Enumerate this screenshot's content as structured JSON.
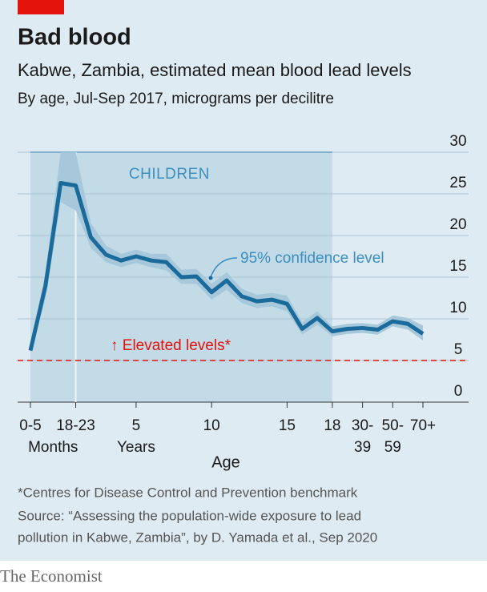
{
  "chart_data": {
    "type": "line",
    "title": "Bad blood",
    "subtitle": "Kabwe, Zambia, estimated mean blood lead levels",
    "subtitle2": "By age, Jul-Sep 2017, micrograms per decilitre",
    "x_label": "Age",
    "x": [
      0,
      1,
      2,
      3,
      4,
      5,
      6,
      7,
      8,
      9,
      10,
      11,
      12,
      13,
      14,
      15,
      16,
      17,
      18,
      19,
      20,
      21,
      22,
      23,
      24,
      25,
      26
    ],
    "xlim": [
      0,
      26
    ],
    "xticks": [
      {
        "value": 0,
        "label": "0-5"
      },
      {
        "value": 3,
        "label": "18-23"
      },
      {
        "value": 7,
        "label": "5"
      },
      {
        "value": 12,
        "label": "10"
      },
      {
        "value": 17,
        "label": "15"
      },
      {
        "value": 20,
        "label": "18"
      },
      {
        "value": 22,
        "label": "30-"
      },
      {
        "value": 24,
        "label": "50-"
      },
      {
        "value": 26,
        "label": "70+"
      }
    ],
    "x_sublabels": [
      {
        "value": 1.5,
        "label": "Months"
      },
      {
        "value": 7,
        "label": "Years"
      },
      {
        "value": 22,
        "label": "39"
      },
      {
        "value": 24,
        "label": "59"
      }
    ],
    "ylim": [
      0,
      30
    ],
    "yticks": [
      0,
      5,
      10,
      15,
      20,
      25,
      30
    ],
    "grid": true,
    "series": [
      {
        "color": "#1a6a9b",
        "band_color": "#a6c8da",
        "values": [
          6.2,
          14,
          26.3,
          26,
          19.8,
          17.7,
          17,
          17.5,
          17,
          16.8,
          15,
          15.1,
          13.2,
          14.6,
          12.7,
          12.1,
          12.3,
          11.8,
          8.8,
          10.1,
          8.5,
          8.8,
          8.9,
          8.7,
          9.7,
          9.4,
          8.2
        ],
        "lower": [
          5.8,
          12.5,
          24,
          23,
          18.5,
          16.8,
          16.2,
          16.7,
          16.2,
          15.8,
          14.2,
          14.2,
          12.3,
          13.5,
          11.9,
          11.3,
          11.5,
          10.9,
          8.1,
          9.3,
          7.9,
          8.2,
          8.3,
          8.1,
          9.1,
          8.7,
          7.4
        ],
        "upper": [
          6.8,
          15.5,
          30,
          30,
          21.5,
          18.8,
          17.8,
          18.3,
          17.8,
          17.8,
          15.9,
          16,
          14.2,
          15.6,
          13.6,
          12.9,
          13.1,
          12.8,
          9.6,
          10.9,
          9.1,
          9.4,
          9.5,
          9.3,
          10.4,
          10.1,
          9.2
        ]
      }
    ],
    "band_label": "95% confidence level",
    "shaded_region": {
      "from": 0,
      "to": 20,
      "label": "CHILDREN",
      "color": "#c3dbe7"
    },
    "divider": 3,
    "reference_line": {
      "value": 5,
      "label": "↑ Elevated levels*",
      "color": "#e3120b"
    },
    "footnote": "*Centres for Disease Control and Prevention benchmark",
    "source": [
      "Source: “Assessing the population-wide exposure to lead",
      "pollution in Kabwe, Zambia”, by D. Yamada et al., Sep 2020"
    ],
    "brand": "The Economist"
  }
}
